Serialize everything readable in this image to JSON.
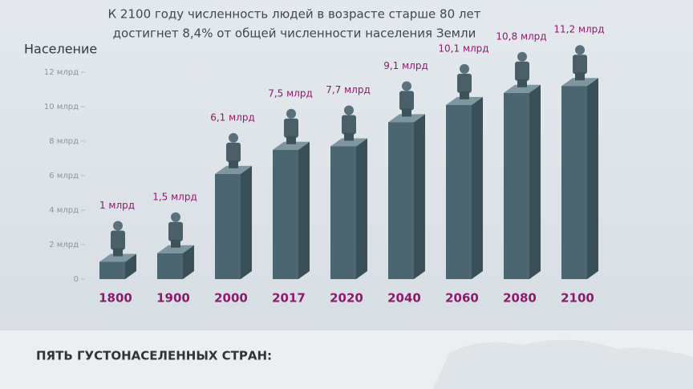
{
  "chart_data": {
    "type": "bar3d",
    "title": [
      "К 2100 году численность людей в возрасте старше 80 лет",
      "достигнет 8,4% от общей численности населения Земли"
    ],
    "y_label": "Население",
    "categories": [
      "1800",
      "1900",
      "2000",
      "2017",
      "2020",
      "2040",
      "2060",
      "2080",
      "2100"
    ],
    "values": [
      1,
      1.5,
      6.1,
      7.5,
      7.7,
      9.1,
      10.1,
      10.8,
      11.2
    ],
    "value_labels": [
      "1 млрд",
      "1,5 млрд",
      "6,1 млрд",
      "7,5 млрд",
      "7,7 млрд",
      "9,1 млрд",
      "10,1 млрд",
      "10,8 млрд",
      "11,2 млрд"
    ],
    "color": "#4c6671",
    "ylim": [
      0,
      12
    ],
    "yticks": [
      0,
      {
        "value": 2,
        "label": "2 млрд"
      },
      {
        "value": 4,
        "label": "4 млрд"
      },
      {
        "value": 6,
        "label": "6 млрд"
      },
      {
        "value": 8,
        "label": "8 млрд"
      },
      {
        "value": 10,
        "label": "10 млрд"
      },
      {
        "value": 12,
        "label": "12 млрд"
      }
    ],
    "grid": false
  },
  "section": {
    "heading": "ПЯТЬ ГУСТОНАСЕЛЕННЫХ СТРАН:"
  }
}
